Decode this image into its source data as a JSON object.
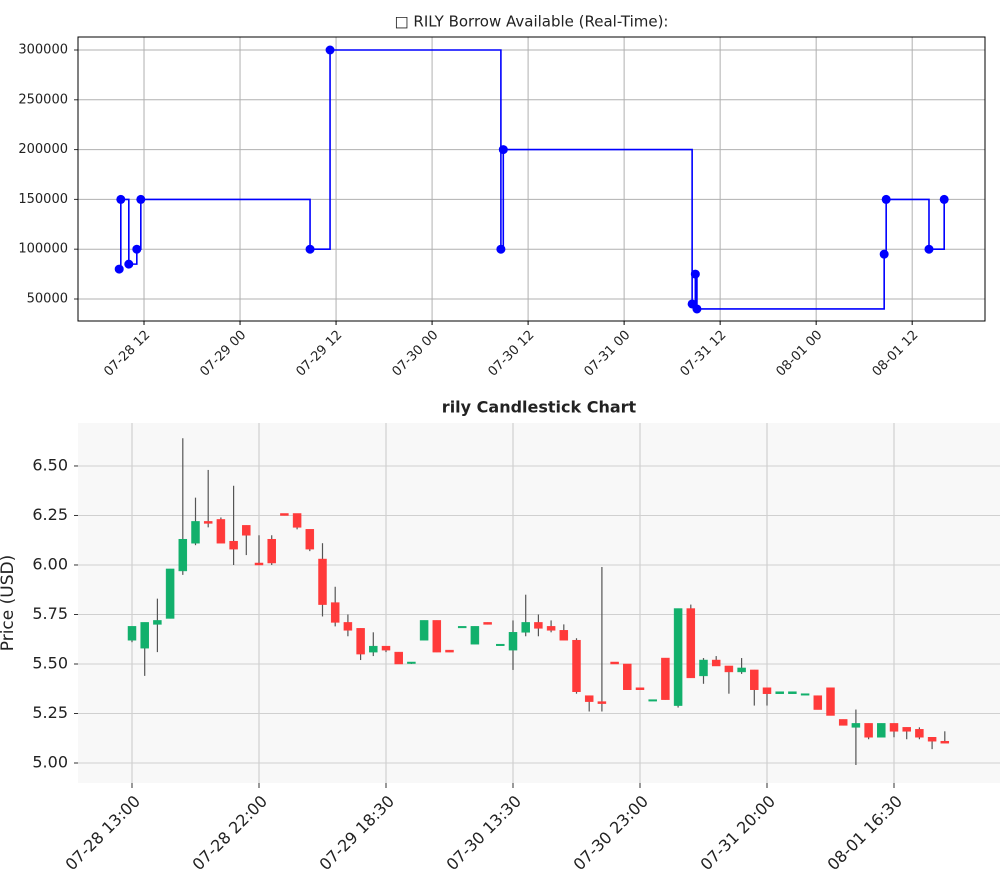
{
  "chart_data": [
    {
      "type": "line",
      "step": "post",
      "marker": "circle",
      "title": "□ RILY Borrow Available (Real-Time):",
      "color": "#0000ff",
      "grid": true,
      "x": [
        8.9,
        9.1,
        10.1,
        11.1,
        11.6,
        32.75,
        35.25,
        56.6,
        56.9,
        80.5,
        80.9,
        81.1,
        104.5,
        104.75,
        110.1,
        112
      ],
      "values": [
        80000,
        150000,
        85000,
        100000,
        150000,
        100000,
        300000,
        100000,
        200000,
        45000,
        75000,
        40000,
        95000,
        150000,
        100000,
        150000
      ],
      "xlim": [
        3.75,
        117.1
      ],
      "ylim": [
        27900,
        313050
      ],
      "xticks": [
        {
          "value": 12,
          "label": "07-28 12"
        },
        {
          "value": 24,
          "label": "07-29 00"
        },
        {
          "value": 36,
          "label": "07-29 12"
        },
        {
          "value": 48,
          "label": "07-30 00"
        },
        {
          "value": 60,
          "label": "07-30 12"
        },
        {
          "value": 72,
          "label": "07-31 00"
        },
        {
          "value": 84,
          "label": "07-31 12"
        },
        {
          "value": 96,
          "label": "08-01 00"
        },
        {
          "value": 108,
          "label": "08-01 12"
        }
      ],
      "yticks": [
        50000,
        100000,
        150000,
        200000,
        250000,
        300000
      ]
    },
    {
      "type": "candlestick",
      "title": "rily Candlestick Chart",
      "ylabel": "Price (USD)",
      "up_color": "#12b06c",
      "down_color": "#ff3a3a",
      "wick_color": "#555555",
      "grid": true,
      "categories": [
        "07-28 13:00",
        null,
        null,
        null,
        null,
        null,
        null,
        null,
        null,
        null,
        "07-28 22:00",
        null,
        null,
        null,
        null,
        null,
        null,
        null,
        null,
        null,
        "07-29 18:30",
        null,
        null,
        null,
        null,
        null,
        null,
        null,
        null,
        null,
        "07-30 13:30",
        null,
        null,
        null,
        null,
        null,
        null,
        null,
        null,
        null,
        "07-30 23:00",
        null,
        null,
        null,
        null,
        null,
        null,
        null,
        null,
        null,
        "07-31 20:00",
        null,
        null,
        null,
        null,
        null,
        null,
        null,
        null,
        null,
        "08-01 16:30",
        null,
        null,
        null,
        null
      ],
      "open": [
        5.62,
        5.58,
        5.7,
        5.73,
        5.97,
        6.11,
        6.22,
        6.23,
        6.12,
        6.2,
        6.01,
        6.13,
        6.26,
        6.26,
        6.18,
        6.03,
        5.81,
        5.71,
        5.68,
        5.56,
        5.59,
        5.56,
        5.51,
        5.62,
        5.72,
        5.57,
        5.69,
        5.6,
        5.71,
        5.6,
        5.57,
        5.66,
        5.71,
        5.69,
        5.67,
        5.62,
        5.34,
        5.31,
        5.51,
        5.5,
        5.38,
        5.32,
        5.53,
        5.29,
        5.78,
        5.44,
        5.52,
        5.49,
        5.46,
        5.47,
        5.38,
        5.35,
        5.35,
        5.35,
        5.34,
        5.38,
        5.22,
        5.18,
        5.2,
        5.13,
        5.2,
        5.18,
        5.17,
        5.13,
        5.11
      ],
      "high": [
        5.69,
        5.71,
        5.83,
        5.98,
        6.64,
        6.34,
        6.48,
        6.24,
        6.4,
        6.2,
        6.15,
        6.15,
        6.26,
        6.26,
        6.18,
        6.11,
        5.89,
        5.75,
        5.68,
        5.66,
        5.59,
        5.56,
        5.51,
        5.72,
        5.72,
        5.57,
        5.69,
        5.69,
        5.71,
        5.6,
        5.72,
        5.85,
        5.75,
        5.72,
        5.7,
        5.63,
        5.34,
        5.99,
        5.51,
        5.5,
        5.38,
        5.32,
        5.53,
        5.78,
        5.8,
        5.53,
        5.54,
        5.49,
        5.53,
        5.47,
        5.38,
        5.36,
        5.36,
        5.35,
        5.34,
        5.38,
        5.22,
        5.27,
        5.2,
        5.2,
        5.2,
        5.18,
        5.18,
        5.13,
        5.16
      ],
      "low": [
        5.61,
        5.44,
        5.56,
        5.73,
        5.95,
        6.1,
        6.19,
        6.11,
        6.0,
        6.05,
        6.0,
        6.0,
        6.25,
        6.18,
        6.07,
        5.74,
        5.69,
        5.64,
        5.52,
        5.54,
        5.56,
        5.5,
        5.5,
        5.62,
        5.56,
        5.56,
        5.69,
        5.6,
        5.7,
        5.6,
        5.47,
        5.64,
        5.64,
        5.66,
        5.62,
        5.35,
        5.26,
        5.26,
        5.5,
        5.37,
        5.37,
        5.32,
        5.32,
        5.28,
        5.43,
        5.4,
        5.49,
        5.35,
        5.45,
        5.29,
        5.29,
        5.35,
        5.35,
        5.35,
        5.27,
        5.24,
        5.19,
        4.99,
        5.12,
        5.13,
        5.13,
        5.12,
        5.12,
        5.07,
        5.1
      ],
      "close": [
        5.69,
        5.71,
        5.72,
        5.98,
        6.13,
        6.22,
        6.21,
        6.11,
        6.08,
        6.15,
        6.0,
        6.01,
        6.25,
        6.19,
        6.08,
        5.8,
        5.71,
        5.67,
        5.55,
        5.59,
        5.57,
        5.5,
        5.51,
        5.72,
        5.56,
        5.56,
        5.69,
        5.69,
        5.7,
        5.6,
        5.66,
        5.71,
        5.68,
        5.67,
        5.62,
        5.36,
        5.31,
        5.3,
        5.5,
        5.37,
        5.37,
        5.32,
        5.32,
        5.78,
        5.43,
        5.52,
        5.49,
        5.46,
        5.48,
        5.37,
        5.35,
        5.36,
        5.36,
        5.35,
        5.27,
        5.24,
        5.19,
        5.2,
        5.13,
        5.2,
        5.16,
        5.16,
        5.13,
        5.11,
        5.1
      ],
      "ylim": [
        4.899,
        6.717
      ],
      "yticks": [
        {
          "value": 5,
          "label": "5.00"
        },
        5.25,
        {
          "value": 5.5,
          "label": "5.50"
        },
        5.75,
        {
          "value": 6,
          "label": "6.00"
        },
        6.25,
        {
          "value": 6.5,
          "label": "6.50"
        }
      ]
    }
  ]
}
